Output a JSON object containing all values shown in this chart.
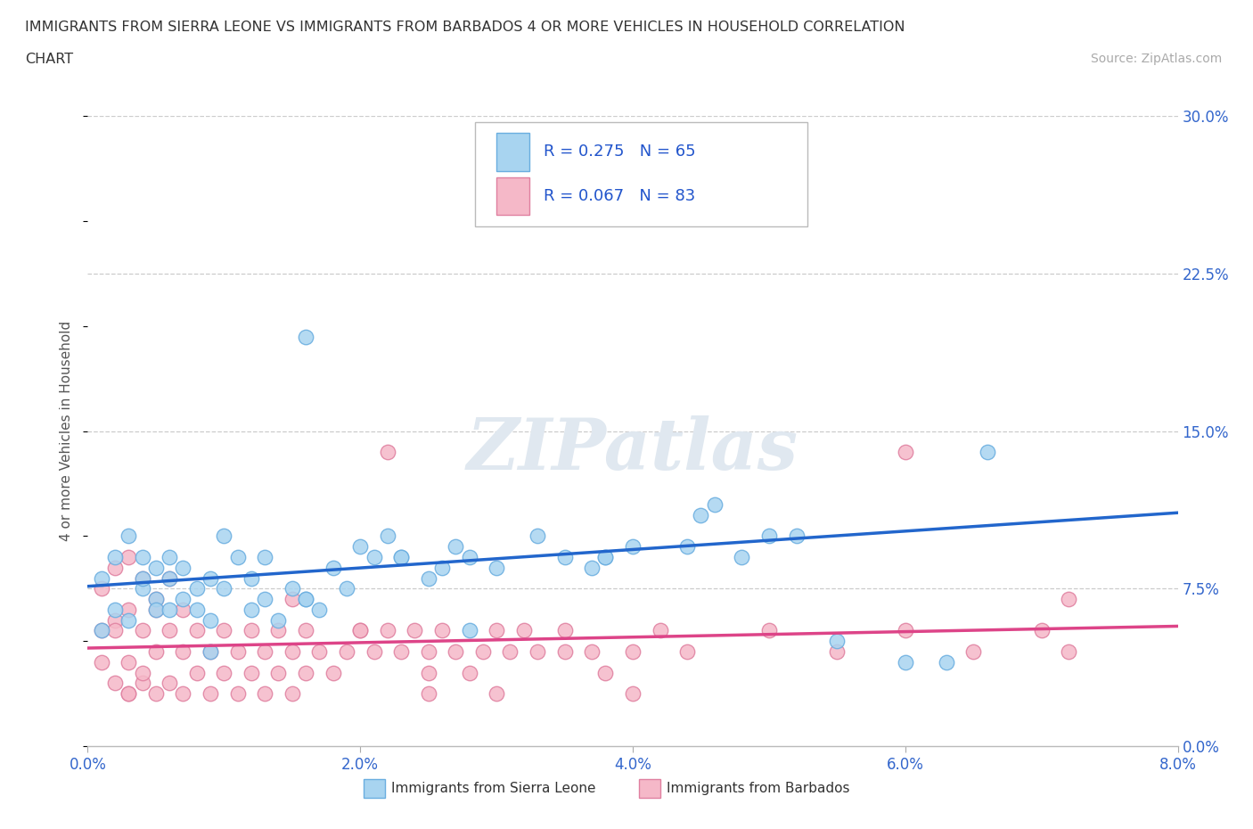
{
  "title_line1": "IMMIGRANTS FROM SIERRA LEONE VS IMMIGRANTS FROM BARBADOS 4 OR MORE VEHICLES IN HOUSEHOLD CORRELATION",
  "title_line2": "CHART",
  "source": "Source: ZipAtlas.com",
  "ylabel": "4 or more Vehicles in Household",
  "xlim": [
    0.0,
    0.08
  ],
  "ylim": [
    0.0,
    0.3
  ],
  "xticks": [
    0.0,
    0.02,
    0.04,
    0.06,
    0.08
  ],
  "xtick_labels": [
    "0.0%",
    "2.0%",
    "4.0%",
    "6.0%",
    "8.0%"
  ],
  "yticks": [
    0.0,
    0.075,
    0.15,
    0.225,
    0.3
  ],
  "ytick_labels": [
    "0.0%",
    "7.5%",
    "15.0%",
    "22.5%",
    "30.0%"
  ],
  "gridline_y": [
    0.075,
    0.15,
    0.225,
    0.3
  ],
  "series1_color": "#a8d4f0",
  "series1_edge_color": "#6aaee0",
  "series2_color": "#f5b8c8",
  "series2_edge_color": "#e080a0",
  "line1_color": "#2266cc",
  "line2_color": "#dd4488",
  "R1": 0.275,
  "N1": 65,
  "R2": 0.067,
  "N2": 83,
  "legend_label1": "Immigrants from Sierra Leone",
  "legend_label2": "Immigrants from Barbados",
  "watermark": "ZIPatlas",
  "background_color": "#ffffff",
  "series1_x": [
    0.001,
    0.001,
    0.002,
    0.002,
    0.003,
    0.003,
    0.004,
    0.004,
    0.005,
    0.005,
    0.005,
    0.006,
    0.006,
    0.007,
    0.007,
    0.008,
    0.008,
    0.009,
    0.009,
    0.01,
    0.01,
    0.011,
    0.012,
    0.012,
    0.013,
    0.013,
    0.014,
    0.015,
    0.016,
    0.016,
    0.017,
    0.018,
    0.019,
    0.02,
    0.021,
    0.022,
    0.023,
    0.025,
    0.026,
    0.027,
    0.028,
    0.03,
    0.033,
    0.035,
    0.037,
    0.038,
    0.04,
    0.042,
    0.044,
    0.045,
    0.046,
    0.048,
    0.05,
    0.052,
    0.06,
    0.063,
    0.066,
    0.023,
    0.038,
    0.028,
    0.055,
    0.016,
    0.006,
    0.009,
    0.004
  ],
  "series1_y": [
    0.055,
    0.08,
    0.065,
    0.09,
    0.06,
    0.1,
    0.075,
    0.09,
    0.07,
    0.085,
    0.065,
    0.08,
    0.09,
    0.07,
    0.085,
    0.075,
    0.065,
    0.06,
    0.08,
    0.075,
    0.1,
    0.09,
    0.08,
    0.065,
    0.07,
    0.09,
    0.06,
    0.075,
    0.07,
    0.195,
    0.065,
    0.085,
    0.075,
    0.095,
    0.09,
    0.1,
    0.09,
    0.08,
    0.085,
    0.095,
    0.09,
    0.085,
    0.1,
    0.09,
    0.085,
    0.09,
    0.095,
    0.275,
    0.095,
    0.11,
    0.115,
    0.09,
    0.1,
    0.1,
    0.04,
    0.04,
    0.14,
    0.09,
    0.09,
    0.055,
    0.05,
    0.07,
    0.065,
    0.045,
    0.08
  ],
  "series2_x": [
    0.001,
    0.001,
    0.001,
    0.002,
    0.002,
    0.002,
    0.003,
    0.003,
    0.003,
    0.003,
    0.004,
    0.004,
    0.004,
    0.005,
    0.005,
    0.005,
    0.006,
    0.006,
    0.006,
    0.007,
    0.007,
    0.007,
    0.008,
    0.008,
    0.009,
    0.009,
    0.01,
    0.01,
    0.011,
    0.011,
    0.012,
    0.012,
    0.013,
    0.013,
    0.014,
    0.014,
    0.015,
    0.015,
    0.016,
    0.016,
    0.017,
    0.018,
    0.019,
    0.02,
    0.021,
    0.022,
    0.023,
    0.024,
    0.025,
    0.026,
    0.027,
    0.028,
    0.029,
    0.03,
    0.031,
    0.032,
    0.033,
    0.035,
    0.037,
    0.038,
    0.04,
    0.042,
    0.044,
    0.05,
    0.055,
    0.06,
    0.065,
    0.07,
    0.072,
    0.02,
    0.025,
    0.03,
    0.035,
    0.04,
    0.015,
    0.022,
    0.025,
    0.06,
    0.072,
    0.002,
    0.003,
    0.004,
    0.005
  ],
  "series2_y": [
    0.055,
    0.075,
    0.04,
    0.06,
    0.085,
    0.03,
    0.065,
    0.09,
    0.04,
    0.025,
    0.055,
    0.08,
    0.03,
    0.045,
    0.07,
    0.025,
    0.055,
    0.08,
    0.03,
    0.045,
    0.065,
    0.025,
    0.055,
    0.035,
    0.045,
    0.025,
    0.055,
    0.035,
    0.045,
    0.025,
    0.055,
    0.035,
    0.045,
    0.025,
    0.055,
    0.035,
    0.045,
    0.025,
    0.055,
    0.035,
    0.045,
    0.035,
    0.045,
    0.055,
    0.045,
    0.055,
    0.045,
    0.055,
    0.045,
    0.055,
    0.045,
    0.035,
    0.045,
    0.055,
    0.045,
    0.055,
    0.045,
    0.055,
    0.045,
    0.035,
    0.045,
    0.055,
    0.045,
    0.055,
    0.045,
    0.055,
    0.045,
    0.055,
    0.07,
    0.055,
    0.035,
    0.025,
    0.045,
    0.025,
    0.07,
    0.14,
    0.025,
    0.14,
    0.045,
    0.055,
    0.025,
    0.035,
    0.065
  ]
}
